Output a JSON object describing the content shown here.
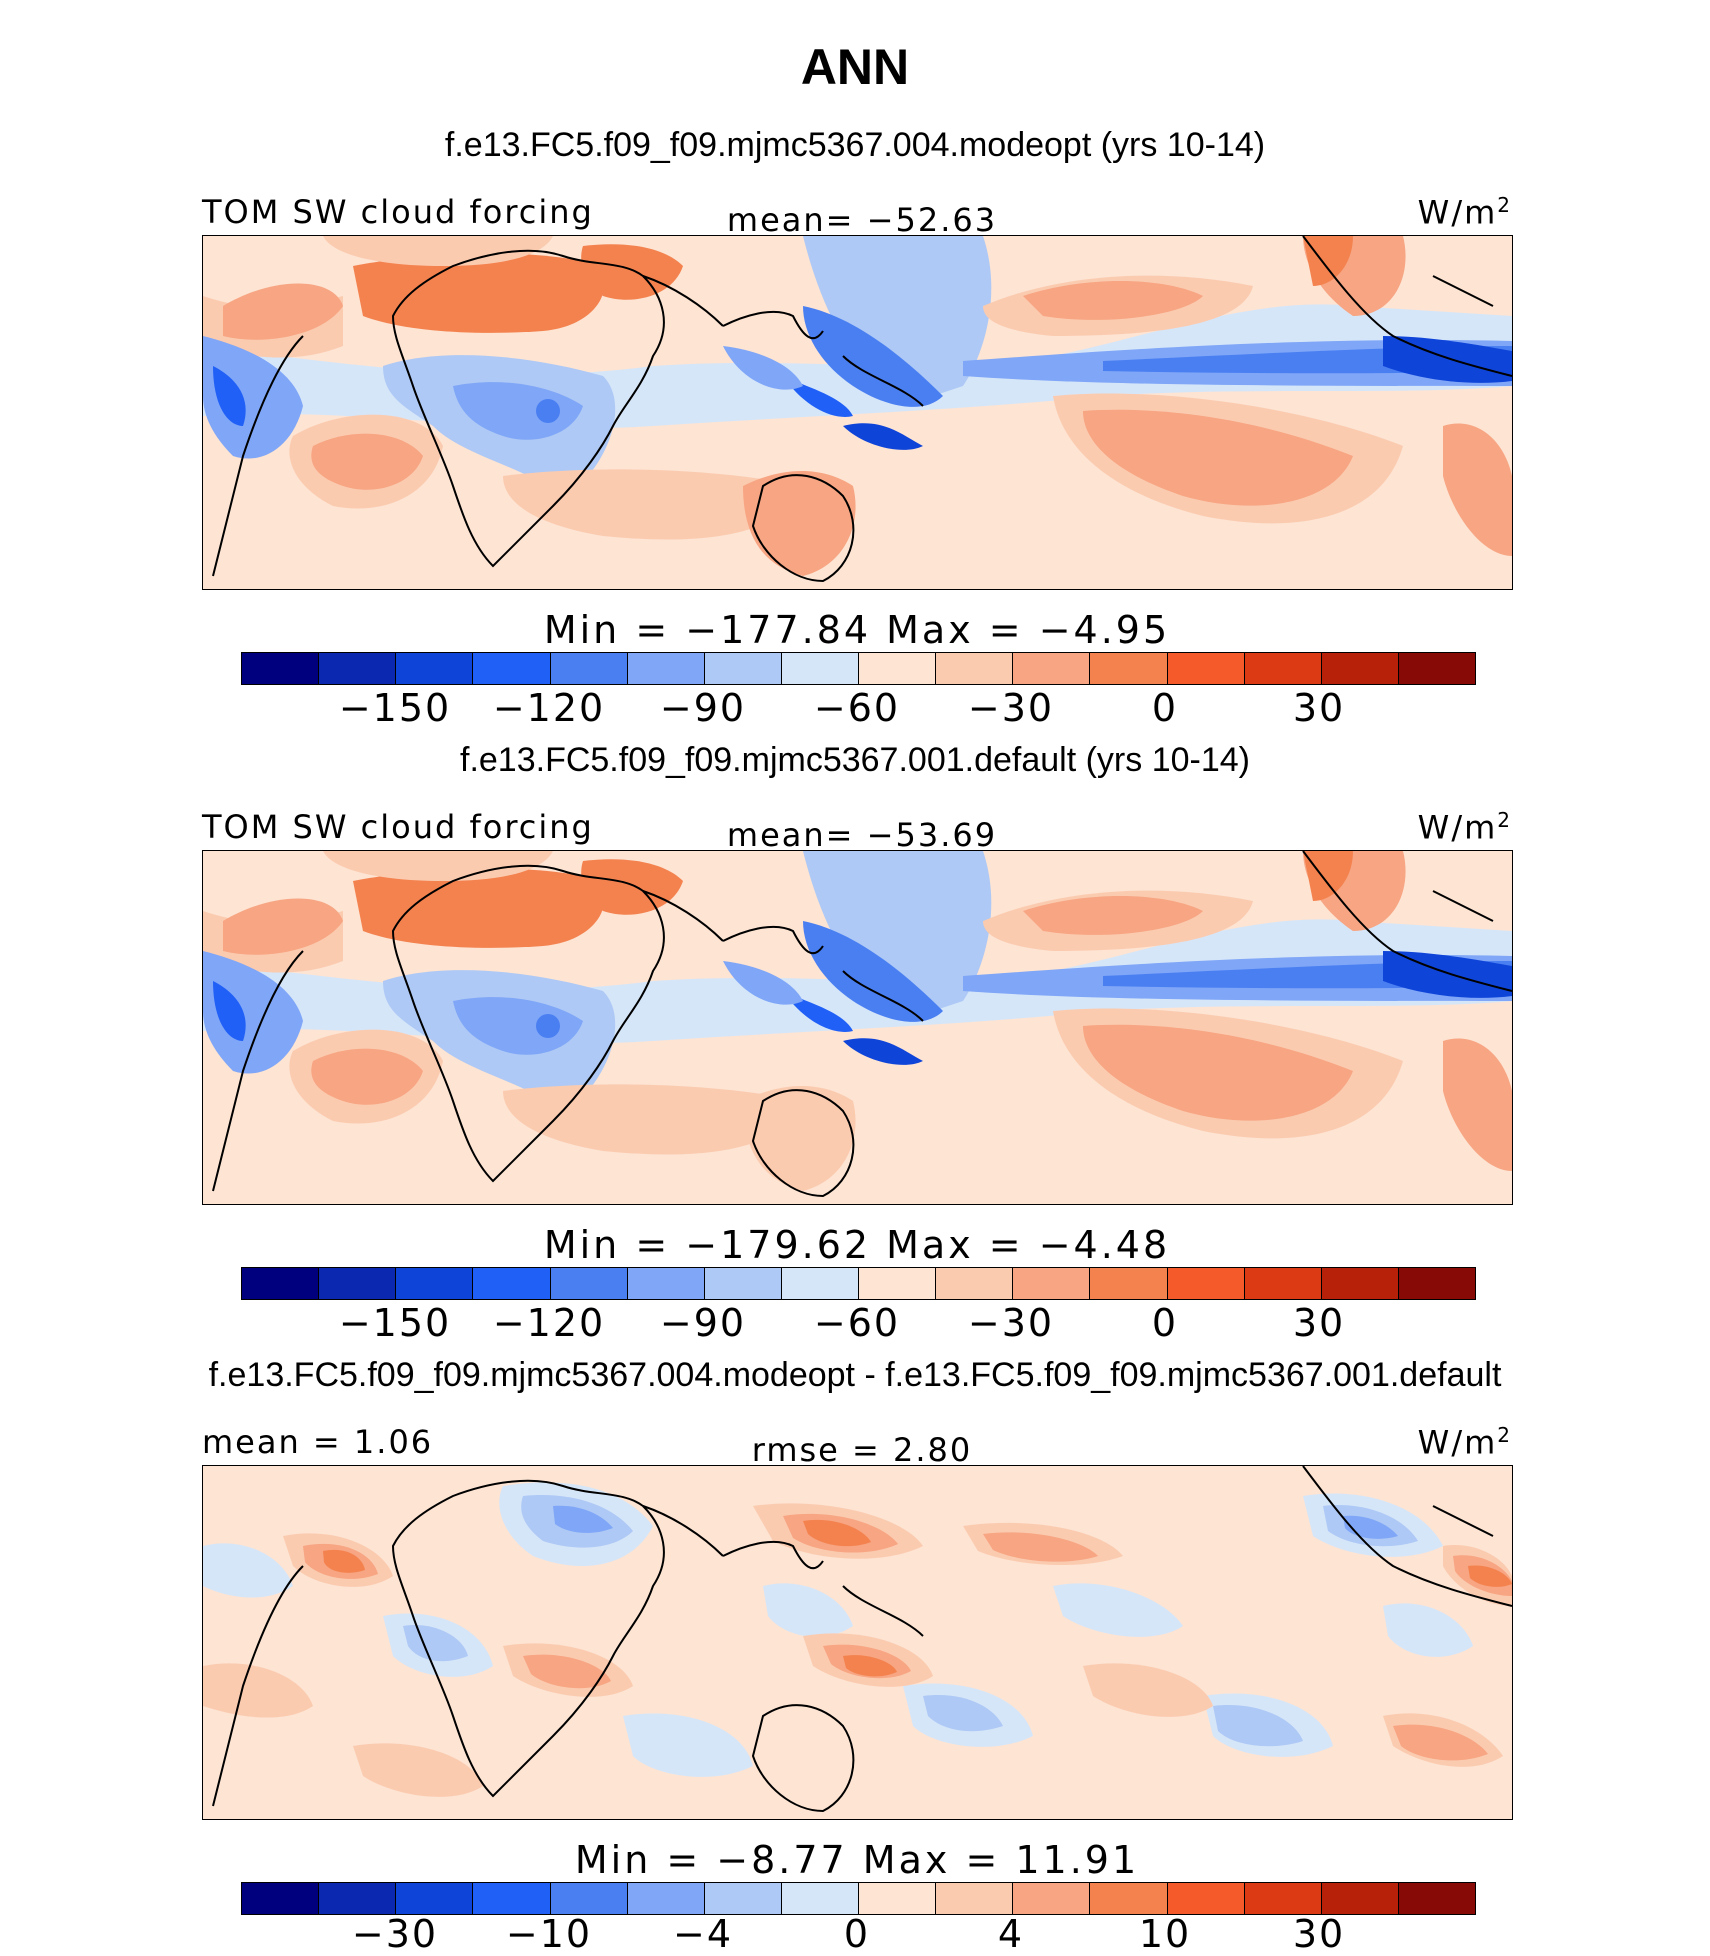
{
  "title": "ANN",
  "colors": [
    "#00007f",
    "#0a28b0",
    "#0f44d9",
    "#2060f7",
    "#4a7ff2",
    "#7fa6f7",
    "#aec9f5",
    "#d6e6f9",
    "#fde4d3",
    "#fbcbb0",
    "#f7a582",
    "#f4824f",
    "#f55a2a",
    "#dc3a14",
    "#b82109",
    "#880a06"
  ],
  "panels": [
    {
      "subtitle": "f.e13.FC5.f09_f09.mjmc5367.004.modeopt (yrs 10-14)",
      "left_label": "TOM SW cloud forcing",
      "center_label": "mean= −52.63",
      "units": "W/m",
      "units_sup": "2",
      "minmax": "Min = −177.84 Max = −4.95",
      "ticks": [
        "−150",
        "−120",
        "−90",
        "−60",
        "−30",
        "0",
        "30"
      ]
    },
    {
      "subtitle": "f.e13.FC5.f09_f09.mjmc5367.001.default (yrs 10-14)",
      "left_label": "TOM SW cloud forcing",
      "center_label": "mean= −53.69",
      "units": "W/m",
      "units_sup": "2",
      "minmax": "Min = −179.62 Max = −4.48",
      "ticks": [
        "−150",
        "−120",
        "−90",
        "−60",
        "−30",
        "0",
        "30"
      ]
    },
    {
      "subtitle": "f.e13.FC5.f09_f09.mjmc5367.004.modeopt - f.e13.FC5.f09_f09.mjmc5367.001.default",
      "left_label": "mean =   1.06",
      "center_label": "rmse =   2.80",
      "units": "W/m",
      "units_sup": "2",
      "minmax": "Min =  −8.77 Max =  11.91",
      "ticks": [
        "−30",
        "−10",
        "−4",
        "0",
        "4",
        "10",
        "30"
      ]
    }
  ]
}
